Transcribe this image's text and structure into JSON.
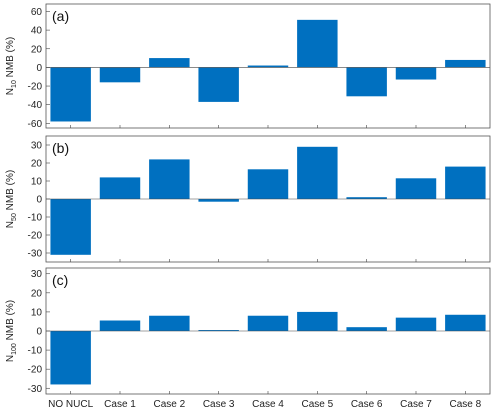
{
  "chart_data": [
    {
      "type": "bar",
      "panel_label": "(a)",
      "ylabel": {
        "prefix": "N",
        "subscript": "10",
        "suffix": " NMB (%)"
      },
      "ylim": [
        -65,
        68
      ],
      "yticks": [
        -60,
        -40,
        -20,
        0,
        20,
        40,
        60
      ],
      "categories": [
        "NO NUCL",
        "Case 1",
        "Case 2",
        "Case 3",
        "Case 4",
        "Case 5",
        "Case 6",
        "Case 7",
        "Case 8"
      ],
      "values": [
        -58,
        -16,
        10,
        -37,
        2,
        51,
        -31,
        -13,
        8
      ],
      "color": "#0070c0",
      "grid": false,
      "show_xticklabels": false
    },
    {
      "type": "bar",
      "panel_label": "(b)",
      "ylabel": {
        "prefix": "N",
        "subscript": "50",
        "suffix": " NMB (%)"
      },
      "ylim": [
        -35,
        35
      ],
      "yticks": [
        -30,
        -20,
        -10,
        0,
        10,
        20,
        30
      ],
      "categories": [
        "NO NUCL",
        "Case 1",
        "Case 2",
        "Case 3",
        "Case 4",
        "Case 5",
        "Case 6",
        "Case 7",
        "Case 8"
      ],
      "values": [
        -31,
        12,
        22,
        -1.5,
        16.5,
        29,
        1,
        11.5,
        18
      ],
      "color": "#0070c0",
      "grid": false,
      "show_xticklabels": false
    },
    {
      "type": "bar",
      "panel_label": "(c)",
      "ylabel": {
        "prefix": "N",
        "subscript": "100",
        "suffix": " NMB (%)"
      },
      "ylim": [
        -33,
        33
      ],
      "yticks": [
        -30,
        -20,
        -10,
        0,
        10,
        20,
        30
      ],
      "categories": [
        "NO NUCL",
        "Case 1",
        "Case 2",
        "Case 3",
        "Case 4",
        "Case 5",
        "Case 6",
        "Case 7",
        "Case 8"
      ],
      "values": [
        -28,
        5.5,
        8,
        0.5,
        8,
        10,
        2,
        7,
        8.5
      ],
      "color": "#0070c0",
      "grid": false,
      "show_xticklabels": true
    }
  ]
}
